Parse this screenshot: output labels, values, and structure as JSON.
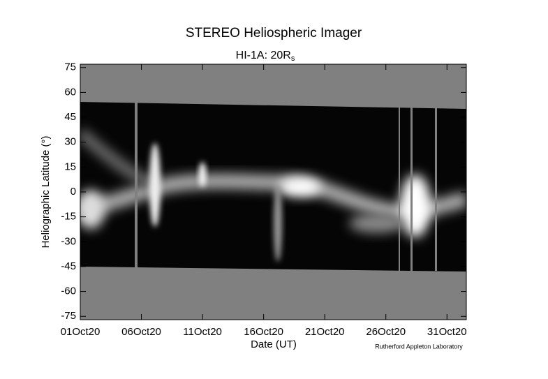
{
  "chart_data": {
    "type": "image",
    "title": "STEREO Heliospheric Imager",
    "subtitle": "HI-1A: 20R",
    "subtitle_subscript": "s",
    "x_label": "Date (UT)",
    "y_label": "Heliographic Latitude (°)",
    "credit": "Rutherford Appleton Laboratory",
    "xlim": [
      "2020-10-01T00:00:00Z",
      "2020-11-01T14:00:00Z"
    ],
    "xticks": [
      {
        "value": "2020-10-01T00:00:00Z",
        "label": "01Oct20"
      },
      {
        "value": "2020-10-06T00:00:00Z",
        "label": "06Oct20"
      },
      {
        "value": "2020-10-11T00:00:00Z",
        "label": "11Oct20"
      },
      {
        "value": "2020-10-16T00:00:00Z",
        "label": "16Oct20"
      },
      {
        "value": "2020-10-21T00:00:00Z",
        "label": "21Oct20"
      },
      {
        "value": "2020-10-26T00:00:00Z",
        "label": "26Oct20"
      },
      {
        "value": "2020-10-31T00:00:00Z",
        "label": "31Oct20"
      }
    ],
    "ylim": [
      -77,
      77
    ],
    "yticks": [
      -75,
      -60,
      -45,
      -30,
      -15,
      0,
      15,
      30,
      45,
      60,
      75
    ]
  }
}
